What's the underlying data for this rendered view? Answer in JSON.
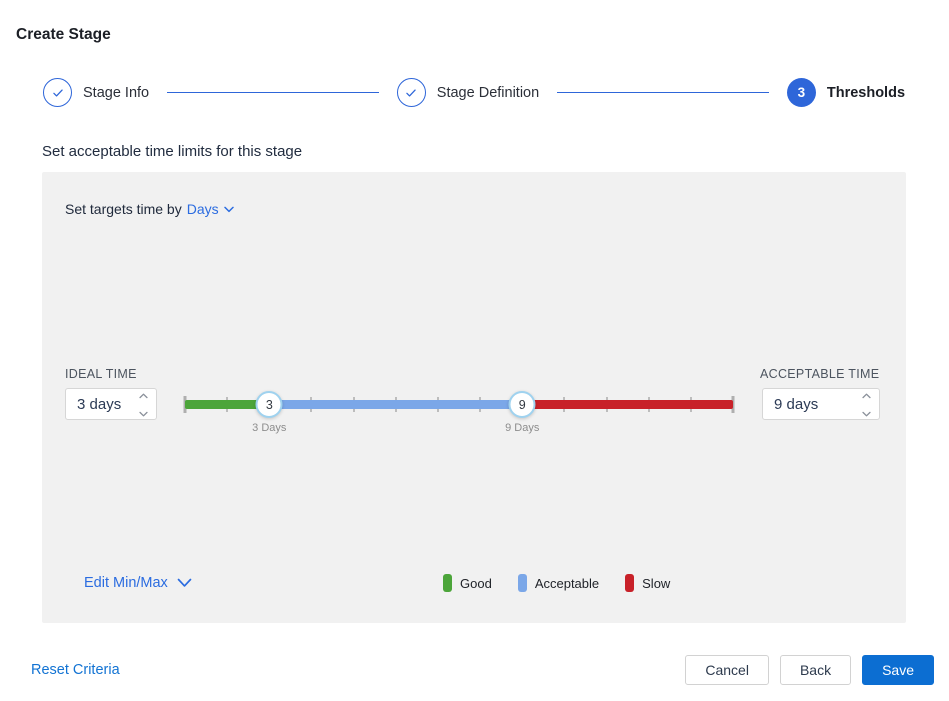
{
  "title": "Create Stage",
  "stepper": {
    "steps": [
      {
        "label": "Stage Info",
        "state": "complete"
      },
      {
        "label": "Stage Definition",
        "state": "complete"
      },
      {
        "label": "Thresholds",
        "state": "active",
        "number": "3"
      }
    ]
  },
  "subtitle": "Set acceptable time limits for this stage",
  "panel": {
    "targets_prefix": "Set targets time by",
    "targets_unit": "Days",
    "ideal": {
      "label": "IDEAL TIME",
      "value": "3 days"
    },
    "acceptable": {
      "label": "ACCEPTABLE TIME",
      "value": "9 days"
    },
    "slider": {
      "min": 1,
      "max": 14,
      "ideal_value": 3,
      "acceptable_value": 9,
      "ideal_handle": "3",
      "acceptable_handle": "9",
      "ideal_caption": "3 Days",
      "acceptable_caption": "9 Days",
      "colors": {
        "good": "#4CA53A",
        "acceptable": "#7BA7E8",
        "slow": "#C82129"
      }
    },
    "edit_minmax": "Edit Min/Max",
    "legend": [
      {
        "label": "Good",
        "color": "#4CA53A"
      },
      {
        "label": "Acceptable",
        "color": "#7BA7E8"
      },
      {
        "label": "Slow",
        "color": "#C82129"
      }
    ]
  },
  "footer": {
    "reset": "Reset Criteria",
    "cancel": "Cancel",
    "back": "Back",
    "save": "Save"
  },
  "colors": {
    "accent": "#2E66D9",
    "link": "#2B6CE0",
    "reset_link": "#1273D3",
    "save": "#0C6ED2",
    "panel_bg": "#F1F1F1",
    "handle_border": "#9FD2EF"
  }
}
